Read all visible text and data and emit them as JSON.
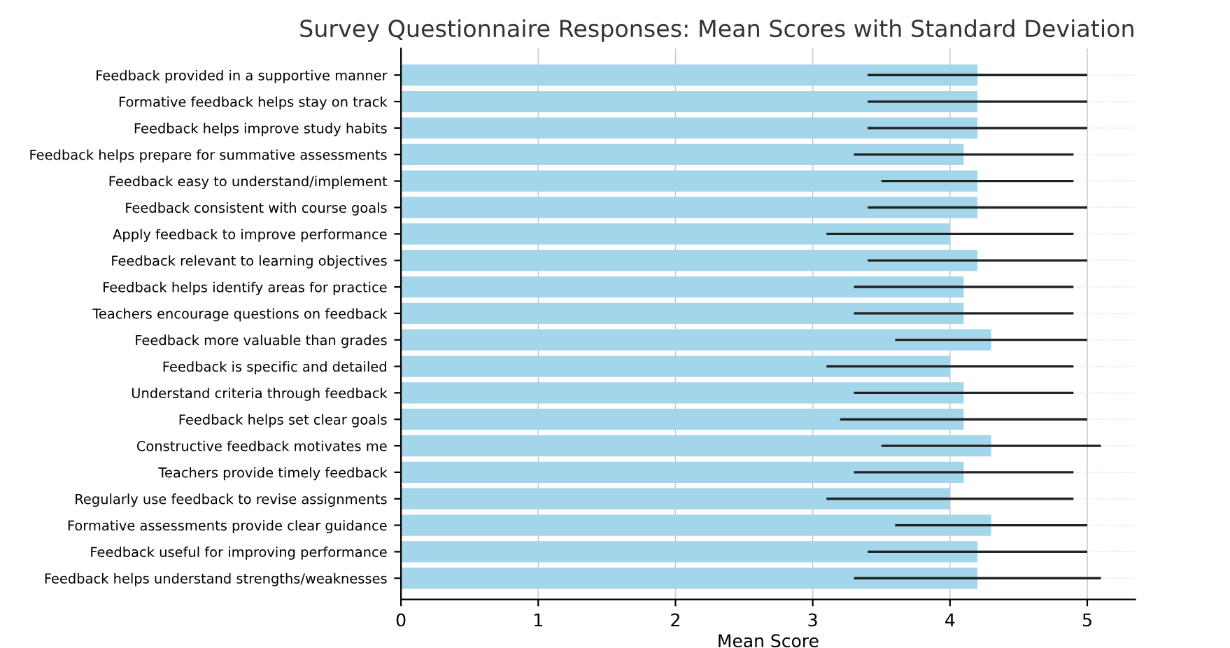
{
  "chart_data": {
    "type": "bar",
    "orientation": "horizontal",
    "title": "Survey Questionnaire Responses: Mean Scores with Standard Deviation",
    "xlabel": "Mean Score",
    "categories": [
      "Feedback provided in a supportive manner",
      "Formative feedback helps stay on track",
      "Feedback helps improve study habits",
      "Feedback helps prepare for summative assessments",
      "Feedback easy to understand/implement",
      "Feedback consistent with course goals",
      "Apply feedback to improve performance",
      "Feedback relevant to learning objectives",
      "Feedback helps identify areas for practice",
      "Teachers encourage questions on feedback",
      "Feedback more valuable than grades",
      "Feedback is specific and detailed",
      "Understand criteria through feedback",
      "Feedback helps set clear goals",
      "Constructive feedback motivates me",
      "Teachers provide timely feedback",
      "Regularly use feedback to revise assignments",
      "Formative assessments provide clear guidance",
      "Feedback useful for improving performance",
      "Feedback helps understand strengths/weaknesses"
    ],
    "values": [
      4.2,
      4.2,
      4.2,
      4.1,
      4.2,
      4.2,
      4.0,
      4.2,
      4.1,
      4.1,
      4.3,
      4.0,
      4.1,
      4.1,
      4.3,
      4.1,
      4.0,
      4.3,
      4.2,
      4.2
    ],
    "errors": [
      0.8,
      0.8,
      0.8,
      0.8,
      0.7,
      0.8,
      0.9,
      0.8,
      0.8,
      0.8,
      0.7,
      0.9,
      0.8,
      0.9,
      0.8,
      0.8,
      0.9,
      0.7,
      0.8,
      0.9
    ],
    "color": "#a3d6ea",
    "xlim": [
      0,
      5.35
    ],
    "xticks": [
      0,
      1,
      2,
      3,
      4,
      5
    ],
    "grid": true
  }
}
